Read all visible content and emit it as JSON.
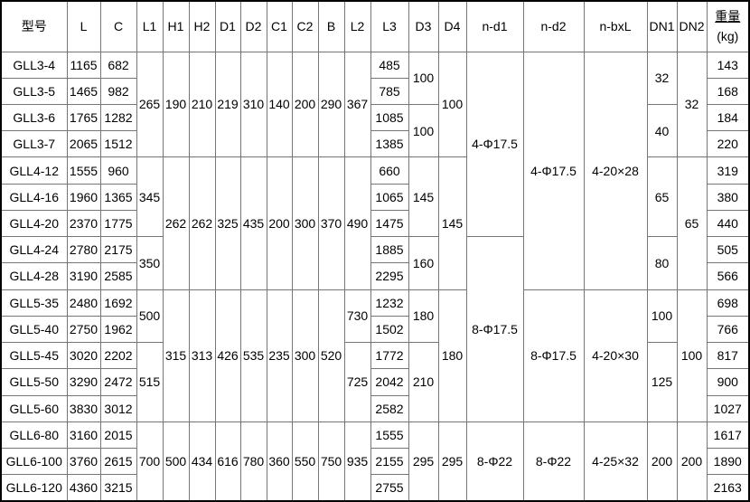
{
  "table": {
    "columns": [
      "型号",
      "L",
      "C",
      "L1",
      "H1",
      "H2",
      "D1",
      "D2",
      "C1",
      "C2",
      "B",
      "L2",
      "L3",
      "D3",
      "D4",
      "n-d1",
      "n-d2",
      "n-bxL",
      "DN1",
      "DN2"
    ],
    "weight_header": [
      "重量",
      "(kg)"
    ],
    "border_colors": {
      "outer": "#000000",
      "inner": "#767676"
    },
    "rows": [
      {
        "cells": [
          {
            "t": "GLL3-4"
          },
          {
            "t": "1165"
          },
          {
            "t": "682"
          },
          {
            "t": "265",
            "rs": 4
          },
          {
            "t": "190",
            "rs": 4
          },
          {
            "t": "210",
            "rs": 4
          },
          {
            "t": "219",
            "rs": 4
          },
          {
            "t": "310",
            "rs": 4
          },
          {
            "t": "140",
            "rs": 4
          },
          {
            "t": "200",
            "rs": 4
          },
          {
            "t": "290",
            "rs": 4
          },
          {
            "t": "367",
            "rs": 4
          },
          {
            "t": "485"
          },
          {
            "t": "100",
            "rs": 2
          },
          {
            "t": "100",
            "rs": 4
          },
          {
            "t": "4-Φ17.5",
            "rs": 7
          },
          {
            "t": "4-Φ17.5",
            "rs": 9
          },
          {
            "t": "4-20×28",
            "rs": 9
          },
          {
            "t": "32",
            "rs": 2
          },
          {
            "t": "32",
            "rs": 4
          },
          {
            "t": "143"
          }
        ]
      },
      {
        "cells": [
          {
            "t": "GLL3-5"
          },
          {
            "t": "1465"
          },
          {
            "t": "982"
          },
          {
            "t": "785"
          },
          {
            "t": "168"
          }
        ]
      },
      {
        "cells": [
          {
            "t": "GLL3-6"
          },
          {
            "t": "1765"
          },
          {
            "t": "1282"
          },
          {
            "t": "1085"
          },
          {
            "t": "100",
            "rs": 2
          },
          {
            "t": "40",
            "rs": 2
          },
          {
            "t": "184"
          }
        ]
      },
      {
        "cells": [
          {
            "t": "GLL3-7"
          },
          {
            "t": "2065"
          },
          {
            "t": "1512"
          },
          {
            "t": "1385"
          },
          {
            "t": "220"
          }
        ]
      },
      {
        "cells": [
          {
            "t": "GLL4-12"
          },
          {
            "t": "1555"
          },
          {
            "t": "960"
          },
          {
            "t": "345",
            "rs": 3
          },
          {
            "t": "262",
            "rs": 5
          },
          {
            "t": "262",
            "rs": 5
          },
          {
            "t": "325",
            "rs": 5
          },
          {
            "t": "435",
            "rs": 5
          },
          {
            "t": "200",
            "rs": 5
          },
          {
            "t": "300",
            "rs": 5
          },
          {
            "t": "370",
            "rs": 5
          },
          {
            "t": "490",
            "rs": 5
          },
          {
            "t": "660"
          },
          {
            "t": "145",
            "rs": 3
          },
          {
            "t": "145",
            "rs": 5
          },
          {
            "t": "65",
            "rs": 3
          },
          {
            "t": "65",
            "rs": 5
          },
          {
            "t": "319"
          }
        ]
      },
      {
        "cells": [
          {
            "t": "GLL4-16"
          },
          {
            "t": "1960"
          },
          {
            "t": "1365"
          },
          {
            "t": "1065"
          },
          {
            "t": "380"
          }
        ]
      },
      {
        "cells": [
          {
            "t": "GLL4-20"
          },
          {
            "t": "2370"
          },
          {
            "t": "1775"
          },
          {
            "t": "1475"
          },
          {
            "t": "440"
          }
        ]
      },
      {
        "cells": [
          {
            "t": "GLL4-24"
          },
          {
            "t": "2780"
          },
          {
            "t": "2175"
          },
          {
            "t": "350",
            "rs": 2
          },
          {
            "t": "1885"
          },
          {
            "t": "160",
            "rs": 2
          },
          {
            "t": "8-Φ17.5",
            "rs": 7
          },
          {
            "t": "80",
            "rs": 2
          },
          {
            "t": "505"
          }
        ]
      },
      {
        "cells": [
          {
            "t": "GLL4-28"
          },
          {
            "t": "3190"
          },
          {
            "t": "2585"
          },
          {
            "t": "2295"
          },
          {
            "t": "566"
          }
        ]
      },
      {
        "cells": [
          {
            "t": "GLL5-35"
          },
          {
            "t": "2480"
          },
          {
            "t": "1692"
          },
          {
            "t": "500",
            "rs": 2
          },
          {
            "t": "315",
            "rs": 5
          },
          {
            "t": "313",
            "rs": 5
          },
          {
            "t": "426",
            "rs": 5
          },
          {
            "t": "535",
            "rs": 5
          },
          {
            "t": "235",
            "rs": 5
          },
          {
            "t": "300",
            "rs": 5
          },
          {
            "t": "520",
            "rs": 5
          },
          {
            "t": "730",
            "rs": 2
          },
          {
            "t": "1232"
          },
          {
            "t": "180",
            "rs": 2
          },
          {
            "t": "180",
            "rs": 5
          },
          {
            "t": "8-Φ17.5",
            "rs": 5
          },
          {
            "t": "4-20×30",
            "rs": 5
          },
          {
            "t": "100",
            "rs": 2
          },
          {
            "t": "100",
            "rs": 5
          },
          {
            "t": "698"
          }
        ]
      },
      {
        "cells": [
          {
            "t": "GLL5-40"
          },
          {
            "t": "2750"
          },
          {
            "t": "1962"
          },
          {
            "t": "1502"
          },
          {
            "t": "766"
          }
        ]
      },
      {
        "cells": [
          {
            "t": "GLL5-45"
          },
          {
            "t": "3020"
          },
          {
            "t": "2202"
          },
          {
            "t": "515",
            "rs": 3
          },
          {
            "t": "725",
            "rs": 3
          },
          {
            "t": "1772"
          },
          {
            "t": "210",
            "rs": 3
          },
          {
            "t": "125",
            "rs": 3
          },
          {
            "t": "817"
          }
        ]
      },
      {
        "cells": [
          {
            "t": "GLL5-50"
          },
          {
            "t": "3290"
          },
          {
            "t": "2472"
          },
          {
            "t": "2042"
          },
          {
            "t": "900"
          }
        ]
      },
      {
        "cells": [
          {
            "t": "GLL5-60"
          },
          {
            "t": "3830"
          },
          {
            "t": "3012"
          },
          {
            "t": "2582"
          },
          {
            "t": "1027"
          }
        ]
      },
      {
        "cells": [
          {
            "t": "GLL6-80"
          },
          {
            "t": "3160"
          },
          {
            "t": "2015"
          },
          {
            "t": "700",
            "rs": 3
          },
          {
            "t": "500",
            "rs": 3
          },
          {
            "t": "434",
            "rs": 3
          },
          {
            "t": "616",
            "rs": 3
          },
          {
            "t": "780",
            "rs": 3
          },
          {
            "t": "360",
            "rs": 3
          },
          {
            "t": "550",
            "rs": 3
          },
          {
            "t": "750",
            "rs": 3
          },
          {
            "t": "935",
            "rs": 3
          },
          {
            "t": "1555"
          },
          {
            "t": "295",
            "rs": 3
          },
          {
            "t": "295",
            "rs": 3
          },
          {
            "t": "8-Φ22",
            "rs": 3
          },
          {
            "t": "8-Φ22",
            "rs": 3
          },
          {
            "t": "4-25×32",
            "rs": 3
          },
          {
            "t": "200",
            "rs": 3
          },
          {
            "t": "200",
            "rs": 3
          },
          {
            "t": "1617"
          }
        ]
      },
      {
        "cells": [
          {
            "t": "GLL6-100"
          },
          {
            "t": "3760"
          },
          {
            "t": "2615"
          },
          {
            "t": "2155"
          },
          {
            "t": "1890"
          }
        ]
      },
      {
        "cells": [
          {
            "t": "GLL6-120"
          },
          {
            "t": "4360"
          },
          {
            "t": "3215"
          },
          {
            "t": "2755"
          },
          {
            "t": "2163"
          }
        ]
      }
    ]
  }
}
